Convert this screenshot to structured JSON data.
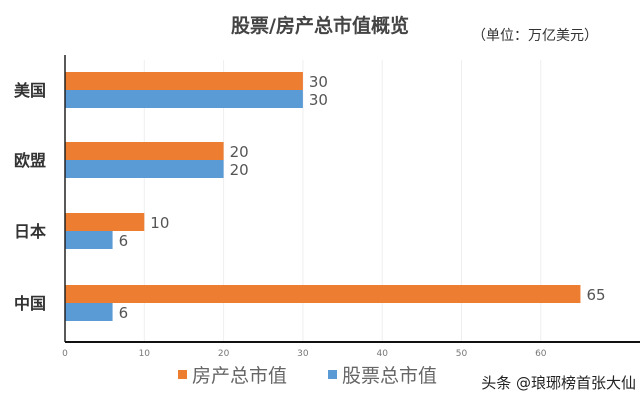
{
  "chart_data": {
    "type": "bar",
    "orientation": "horizontal",
    "title": "股票/房产总市值概览",
    "unit_note": "（单位：万亿美元）",
    "categories": [
      "美国",
      "欧盟",
      "日本",
      "中国"
    ],
    "series": [
      {
        "name": "房产总市值",
        "values": [
          30,
          20,
          10,
          65
        ],
        "color": "#ED7D31"
      },
      {
        "name": "股票总市值",
        "values": [
          30,
          20,
          6,
          6
        ],
        "color": "#5B9BD5"
      }
    ],
    "xlim": [
      0,
      72
    ],
    "xticks": [
      0,
      10,
      20,
      30,
      40,
      50,
      60
    ],
    "grid": true,
    "legend": "bottom"
  },
  "watermark": "头条 @琅琊榜首张大仙"
}
